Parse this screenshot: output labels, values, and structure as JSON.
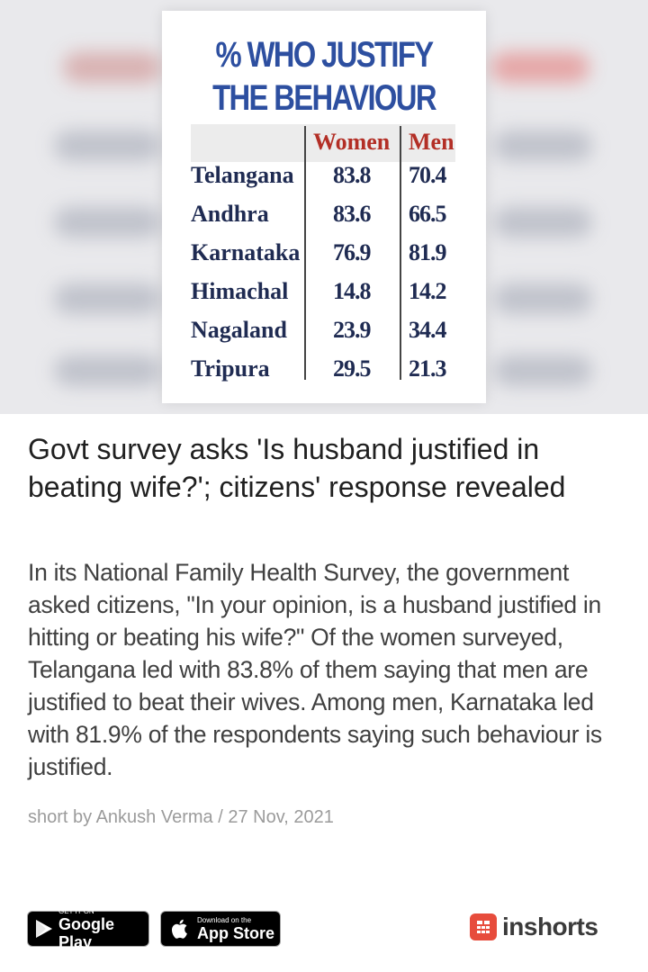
{
  "hero": {
    "title_line1": "% WHO JUSTIFY",
    "title_line2": "THE BEHAVIOUR",
    "columns": [
      "Women",
      "Men"
    ],
    "rows": [
      {
        "state": "Telangana",
        "women": "83.8",
        "men": "70.4"
      },
      {
        "state": "Andhra",
        "women": "83.6",
        "men": "66.5"
      },
      {
        "state": "Karnataka",
        "women": "76.9",
        "men": "81.9"
      },
      {
        "state": "Himachal",
        "women": "14.8",
        "men": "14.2"
      },
      {
        "state": "Nagaland",
        "women": "23.9",
        "men": "34.4"
      },
      {
        "state": "Tripura",
        "women": "29.5",
        "men": "21.3"
      }
    ],
    "colors": {
      "title": "#2d4fa0",
      "column_head": "#b32f26",
      "row_text": "#1f2b52"
    }
  },
  "article": {
    "headline": "Govt survey asks 'Is husband justified in beating wife?'; citizens' response revealed",
    "body": "In its National Family Health Survey, the government asked citizens, \"In your opinion, is a husband justified in hitting or beating his wife?\" Of the women surveyed, Telangana led with 83.8% of them saying that men are justified to beat their wives. Among men, Karnataka led with 81.9% of the respondents saying such behaviour is justified.",
    "byline": "short by Ankush Verma / 27 Nov, 2021"
  },
  "footer": {
    "google_play": {
      "small": "GET IT ON",
      "big": "Google Play",
      "icon": "play-triangle-icon"
    },
    "app_store": {
      "small": "Download on the",
      "big": "App Store",
      "icon": "apple-icon"
    },
    "brand": {
      "name": "inshorts",
      "color": "#e74c3c",
      "icon": "inshorts-logo-icon"
    }
  }
}
